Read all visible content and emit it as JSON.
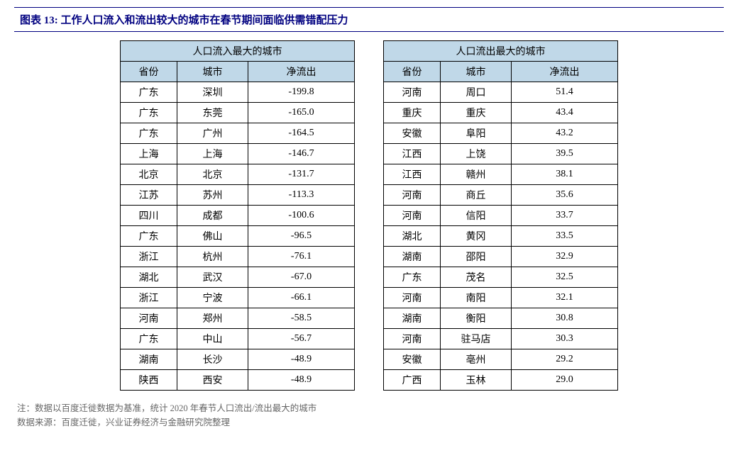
{
  "title": "图表 13:  工作人口流入和流出较大的城市在春节期间面临供需错配压力",
  "left_table": {
    "title": "人口流入最大的城市",
    "columns": [
      "省份",
      "城市",
      "净流出"
    ],
    "rows": [
      [
        "广东",
        "深圳",
        "-199.8"
      ],
      [
        "广东",
        "东莞",
        "-165.0"
      ],
      [
        "广东",
        "广州",
        "-164.5"
      ],
      [
        "上海",
        "上海",
        "-146.7"
      ],
      [
        "北京",
        "北京",
        "-131.7"
      ],
      [
        "江苏",
        "苏州",
        "-113.3"
      ],
      [
        "四川",
        "成都",
        "-100.6"
      ],
      [
        "广东",
        "佛山",
        "-96.5"
      ],
      [
        "浙江",
        "杭州",
        "-76.1"
      ],
      [
        "湖北",
        "武汉",
        "-67.0"
      ],
      [
        "浙江",
        "宁波",
        "-66.1"
      ],
      [
        "河南",
        "郑州",
        "-58.5"
      ],
      [
        "广东",
        "中山",
        "-56.7"
      ],
      [
        "湖南",
        "长沙",
        "-48.9"
      ],
      [
        "陕西",
        "西安",
        "-48.9"
      ]
    ]
  },
  "right_table": {
    "title": "人口流出最大的城市",
    "columns": [
      "省份",
      "城市",
      "净流出"
    ],
    "rows": [
      [
        "河南",
        "周口",
        "51.4"
      ],
      [
        "重庆",
        "重庆",
        "43.4"
      ],
      [
        "安徽",
        "阜阳",
        "43.2"
      ],
      [
        "江西",
        "上饶",
        "39.5"
      ],
      [
        "江西",
        "赣州",
        "38.1"
      ],
      [
        "河南",
        "商丘",
        "35.6"
      ],
      [
        "河南",
        "信阳",
        "33.7"
      ],
      [
        "湖北",
        "黄冈",
        "33.5"
      ],
      [
        "湖南",
        "邵阳",
        "32.9"
      ],
      [
        "广东",
        "茂名",
        "32.5"
      ],
      [
        "河南",
        "南阳",
        "32.1"
      ],
      [
        "湖南",
        "衡阳",
        "30.8"
      ],
      [
        "河南",
        "驻马店",
        "30.3"
      ],
      [
        "安徽",
        "亳州",
        "29.2"
      ],
      [
        "广西",
        "玉林",
        "29.0"
      ]
    ]
  },
  "footnote1": "注：数据以百度迁徙数据为基准，统计 2020 年春节人口流出/流出最大的城市",
  "footnote2": "数据来源：百度迁徙，兴业证券经济与金融研究院整理",
  "colors": {
    "title_color": "#000080",
    "border_color": "#000080",
    "header_bg": "#c0d8e8",
    "cell_border": "#000000",
    "footnote_color": "#666666"
  }
}
